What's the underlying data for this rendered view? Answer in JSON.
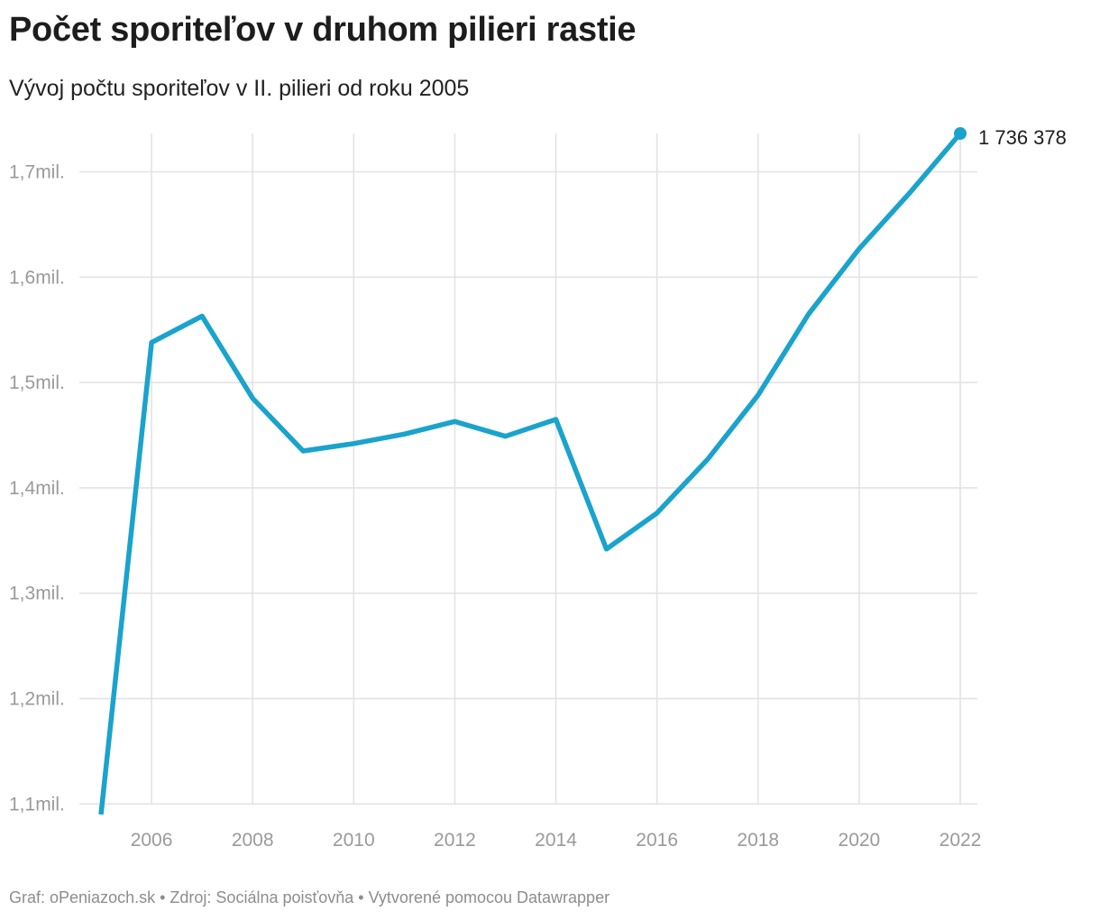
{
  "title": "Počet sporiteľov v druhom pilieri rastie",
  "subtitle": "Vývoj počtu sporiteľov v II. pilieri od roku 2005",
  "footer": {
    "credit_prefix": "Graf: ",
    "credit": "oPeniazoch.sk",
    "separator1": " • ",
    "source_prefix": "Zdroj: ",
    "source": "Sociálna poisťovňa",
    "separator2": " • ",
    "made_with": "Vytvorené pomocou Datawrapper"
  },
  "colors": {
    "line": "#1aa3cc",
    "grid": "#e3e3e3",
    "tick_text": "#9a9a9a"
  },
  "chart_data": {
    "type": "line",
    "title": "Počet sporiteľov v druhom pilieri rastie",
    "subtitle": "Vývoj počtu sporiteľov v II. pilieri od roku 2005",
    "xlabel": "",
    "ylabel": "",
    "grid": true,
    "xlim": [
      2005,
      2022
    ],
    "ylim": [
      1090000,
      1736378
    ],
    "x_ticks": [
      2006,
      2008,
      2010,
      2012,
      2014,
      2016,
      2018,
      2020,
      2022
    ],
    "x_tick_labels": [
      "2006",
      "2008",
      "2010",
      "2012",
      "2014",
      "2016",
      "2018",
      "2020",
      "2022"
    ],
    "y_ticks": [
      1100000,
      1200000,
      1300000,
      1400000,
      1500000,
      1600000,
      1700000
    ],
    "y_tick_labels": [
      "1,1mil.",
      "1,2mil.",
      "1,3mil.",
      "1,4mil.",
      "1,5mil.",
      "1,6mil.",
      "1,7mil."
    ],
    "series": [
      {
        "x": [
          2005,
          2006,
          2007,
          2008,
          2009,
          2010,
          2011,
          2012,
          2013,
          2014,
          2015,
          2016,
          2017,
          2018,
          2019,
          2020,
          2021,
          2022
        ],
        "values": [
          1090000,
          1538000,
          1563000,
          1485000,
          1435000,
          1442000,
          1451000,
          1463000,
          1449000,
          1465000,
          1342000,
          1376000,
          1427000,
          1488000,
          1565000,
          1627000,
          1680000,
          1736378
        ]
      }
    ],
    "annotations": [
      {
        "x": 2022,
        "y": 1736378,
        "text": "1 736 378"
      }
    ]
  }
}
